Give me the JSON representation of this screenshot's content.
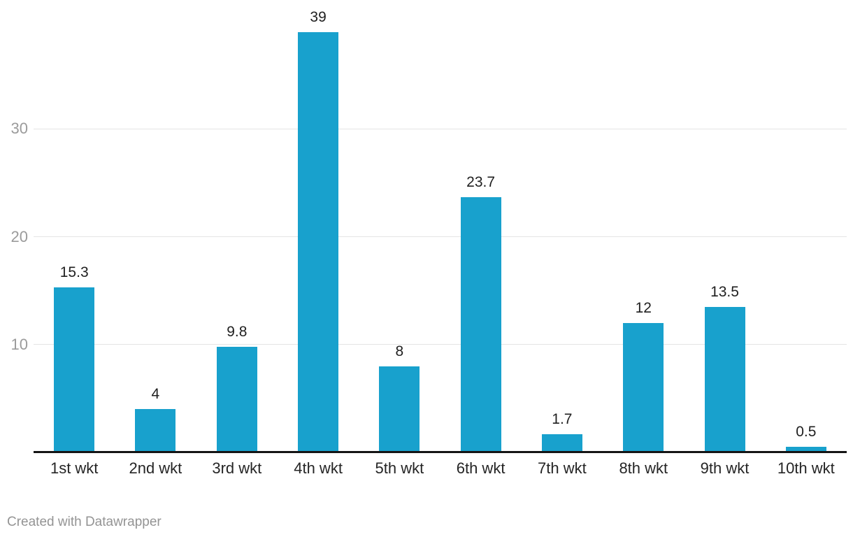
{
  "chart_data": {
    "type": "bar",
    "categories": [
      "1st wkt",
      "2nd wkt",
      "3rd wkt",
      "4th wkt",
      "5th wkt",
      "6th wkt",
      "7th wkt",
      "8th wkt",
      "9th wkt",
      "10th wkt"
    ],
    "values": [
      15.3,
      4,
      9.8,
      39,
      8,
      23.7,
      1.7,
      12,
      13.5,
      0.5
    ],
    "value_labels": [
      "15.3",
      "4",
      "9.8",
      "39",
      "8",
      "23.7",
      "1.7",
      "12",
      "13.5",
      "0.5"
    ],
    "title": "",
    "xlabel": "",
    "ylabel": "",
    "yticks": [
      10,
      20,
      30
    ],
    "ytick_labels": [
      "10",
      "20",
      "30"
    ],
    "ylim": [
      0,
      40
    ],
    "grid": "horizontal",
    "legend": "none",
    "bar_color": "#18a1cd"
  },
  "footer": {
    "text": "Created with Datawrapper"
  },
  "colors": {
    "bar": "#18a1cd",
    "grid": "#e4e4e4",
    "axis": "#151515",
    "tick_label": "#9b9b9b",
    "category_label": "#252525",
    "value_label": "#1f1f1f",
    "footer_text": "#949494",
    "background": "#ffffff"
  }
}
